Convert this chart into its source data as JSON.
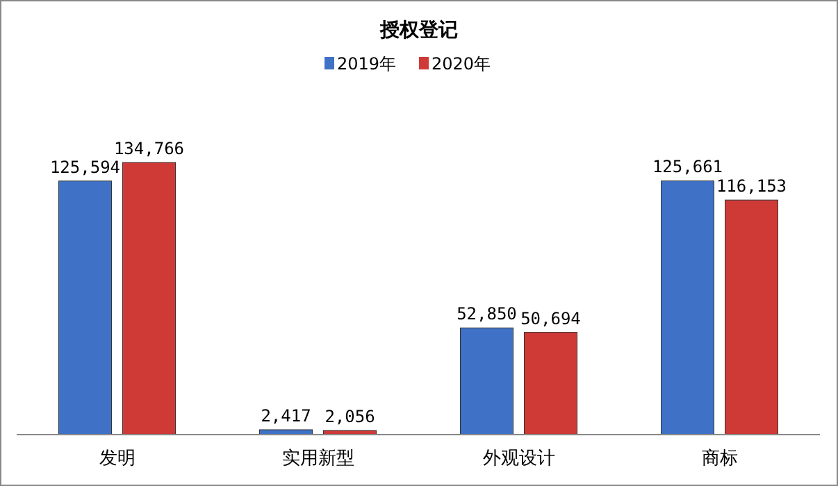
{
  "chart_data": {
    "type": "bar",
    "title": "授权登记",
    "categories": [
      "发明",
      "实用新型",
      "外观设计",
      "商标"
    ],
    "series": [
      {
        "name": "2019年",
        "color": "#3f72c6",
        "values": [
          125594,
          2417,
          52850,
          125661
        ],
        "value_labels": [
          "125,594",
          "2,417",
          "52,850",
          "125,661"
        ]
      },
      {
        "name": "2020年",
        "color": "#d03a36",
        "values": [
          134766,
          2056,
          50694,
          116153
        ],
        "value_labels": [
          "134,766",
          "2,056",
          "50,694",
          "116,153"
        ]
      }
    ],
    "legend": "top",
    "grid": false
  }
}
